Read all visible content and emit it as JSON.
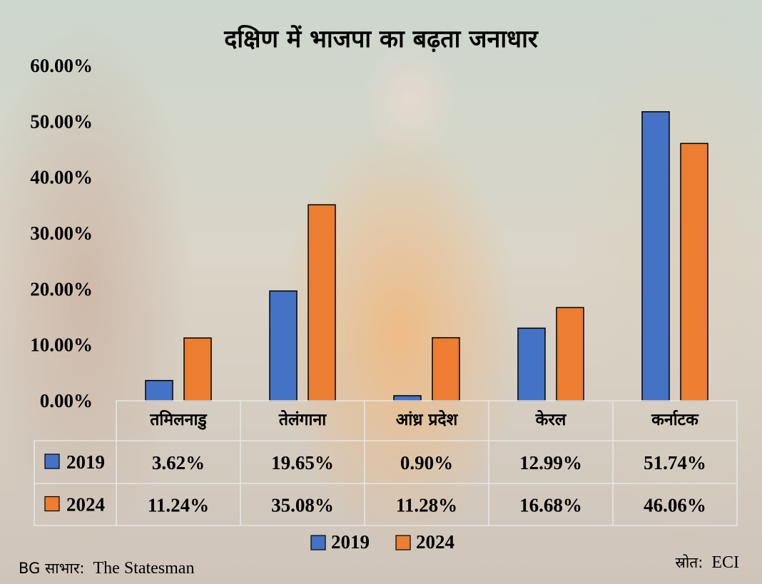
{
  "chart_data": {
    "type": "bar",
    "title": "दक्षिण में भाजपा का बढ़ता जनाधार",
    "categories": [
      "तमिलनाडु",
      "तेलंगाना",
      "आंध्र प्रदेश",
      "केरल",
      "कर्नाटक"
    ],
    "series": [
      {
        "name": "2019",
        "color": "#4472C4",
        "values": [
          3.62,
          19.65,
          0.9,
          12.99,
          51.74
        ],
        "labels": [
          "3.62%",
          "19.65%",
          "0.90%",
          "12.99%",
          "51.74%"
        ]
      },
      {
        "name": "2024",
        "color": "#ED7D31",
        "values": [
          11.24,
          35.08,
          11.28,
          16.68,
          46.06
        ],
        "labels": [
          "11.24%",
          "35.08%",
          "11.28%",
          "16.68%",
          "46.06%"
        ]
      }
    ],
    "ylim": [
      0,
      60
    ],
    "yticks": [
      "0.00%",
      "10.00%",
      "20.00%",
      "30.00%",
      "40.00%",
      "50.00%",
      "60.00%"
    ],
    "grid": false,
    "legend": "bottom"
  },
  "footer": {
    "credit_prefix": "BG साभार:",
    "credit_source": "The Statesman",
    "source_prefix": "स्रोत:",
    "source_value": "ECI"
  }
}
